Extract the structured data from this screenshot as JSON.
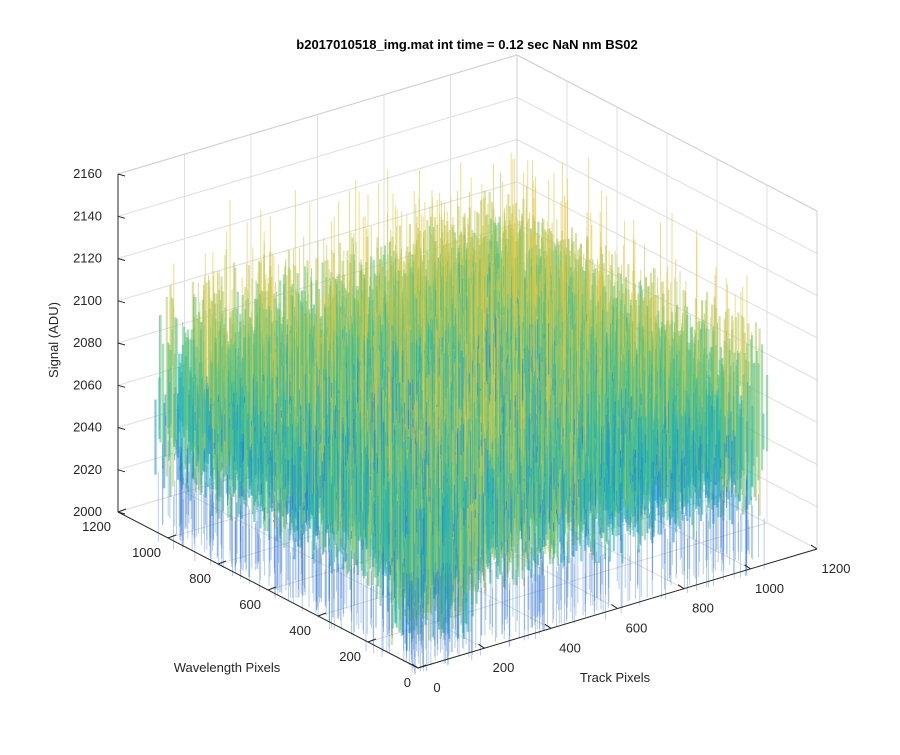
{
  "chart_data": {
    "type": "surface3d",
    "title": "b2017010518_img.mat int time = 0.12 sec  NaN nm BS02",
    "zlabel": "Signal (ADU)",
    "xlabel": "Track Pixels",
    "ylabel": "Wavelength Pixels",
    "x_ticks": [
      "0",
      "200",
      "400",
      "600",
      "800",
      "1000",
      "1200"
    ],
    "y_ticks": [
      "0",
      "200",
      "400",
      "600",
      "800",
      "1000",
      "1200"
    ],
    "z_ticks": [
      "2000",
      "2020",
      "2040",
      "2060",
      "2080",
      "2100",
      "2120",
      "2140",
      "2160"
    ],
    "x_range": [
      0,
      1200
    ],
    "y_range": [
      0,
      1200
    ],
    "z_range": [
      2000,
      2160
    ],
    "data_extent": {
      "x": [
        0,
        1050
      ],
      "y": [
        0,
        1050
      ]
    },
    "signal": {
      "mean": 2060,
      "top_mean": 2100,
      "peak": 2150,
      "trough": 2010
    },
    "colormap": [
      "#2a6fd8",
      "#1e90d5",
      "#26b3b3",
      "#5cc281",
      "#b8c85c",
      "#e7c640"
    ],
    "grid": true
  }
}
